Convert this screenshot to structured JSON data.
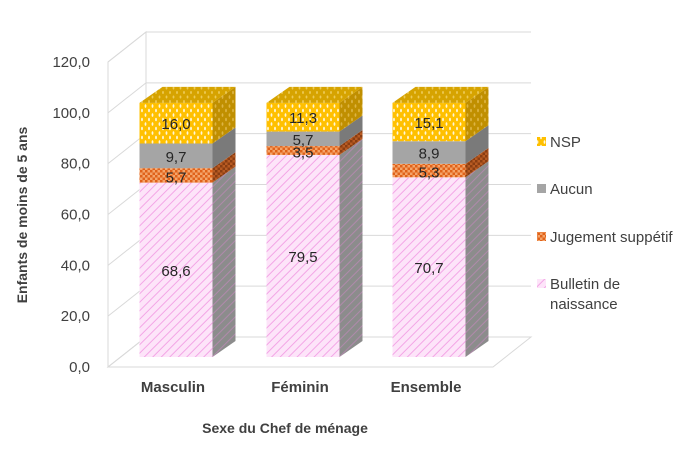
{
  "chart_data": {
    "type": "bar",
    "stacked": true,
    "three_d": true,
    "title": "",
    "xlabel": "Sexe du Chef de ménage",
    "ylabel": "Enfants de moins de 5 ans",
    "ylim": [
      0,
      120
    ],
    "yticks": [
      "0,0",
      "20,0",
      "40,0",
      "60,0",
      "80,0",
      "100,0",
      "120,0"
    ],
    "grid": true,
    "legend_position": "right",
    "categories": [
      "Masculin",
      "Féminin",
      "Ensemble"
    ],
    "series": [
      {
        "name": "Bulletin de naissance",
        "values": [
          68.6,
          79.5,
          70.7
        ],
        "labels": [
          "68,6",
          "79,5",
          "70,7"
        ],
        "color": "#f6b8ee"
      },
      {
        "name": "Jugement suppétif",
        "values": [
          5.7,
          3.5,
          5.3
        ],
        "labels": [
          "5,7",
          "3,5",
          "5,3"
        ],
        "color": "#ed7d31"
      },
      {
        "name": "Aucun",
        "values": [
          9.7,
          5.7,
          8.9
        ],
        "labels": [
          "9,7",
          "5,7",
          "8,9"
        ],
        "color": "#a5a5a5"
      },
      {
        "name": "NSP",
        "values": [
          16.0,
          11.3,
          15.1
        ],
        "labels": [
          "16,0",
          "11,3",
          "15,1"
        ],
        "color": "#ffc000"
      }
    ],
    "legend": [
      {
        "label": "NSP",
        "color": "#ffc000"
      },
      {
        "label": "Aucun",
        "color": "#a5a5a5"
      },
      {
        "label": "Jugement suppétif",
        "color": "#ed7d31"
      },
      {
        "label": "Bulletin de naissance",
        "color": "#f6b8ee"
      }
    ]
  }
}
